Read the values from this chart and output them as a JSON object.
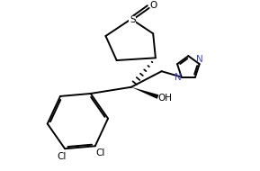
{
  "background_color": "#ffffff",
  "line_color": "#000000",
  "N_color": "#4444cc",
  "line_width": 1.4,
  "figsize": [
    2.89,
    1.9
  ],
  "dpi": 100,
  "xlim": [
    0,
    10
  ],
  "ylim": [
    0,
    7
  ]
}
